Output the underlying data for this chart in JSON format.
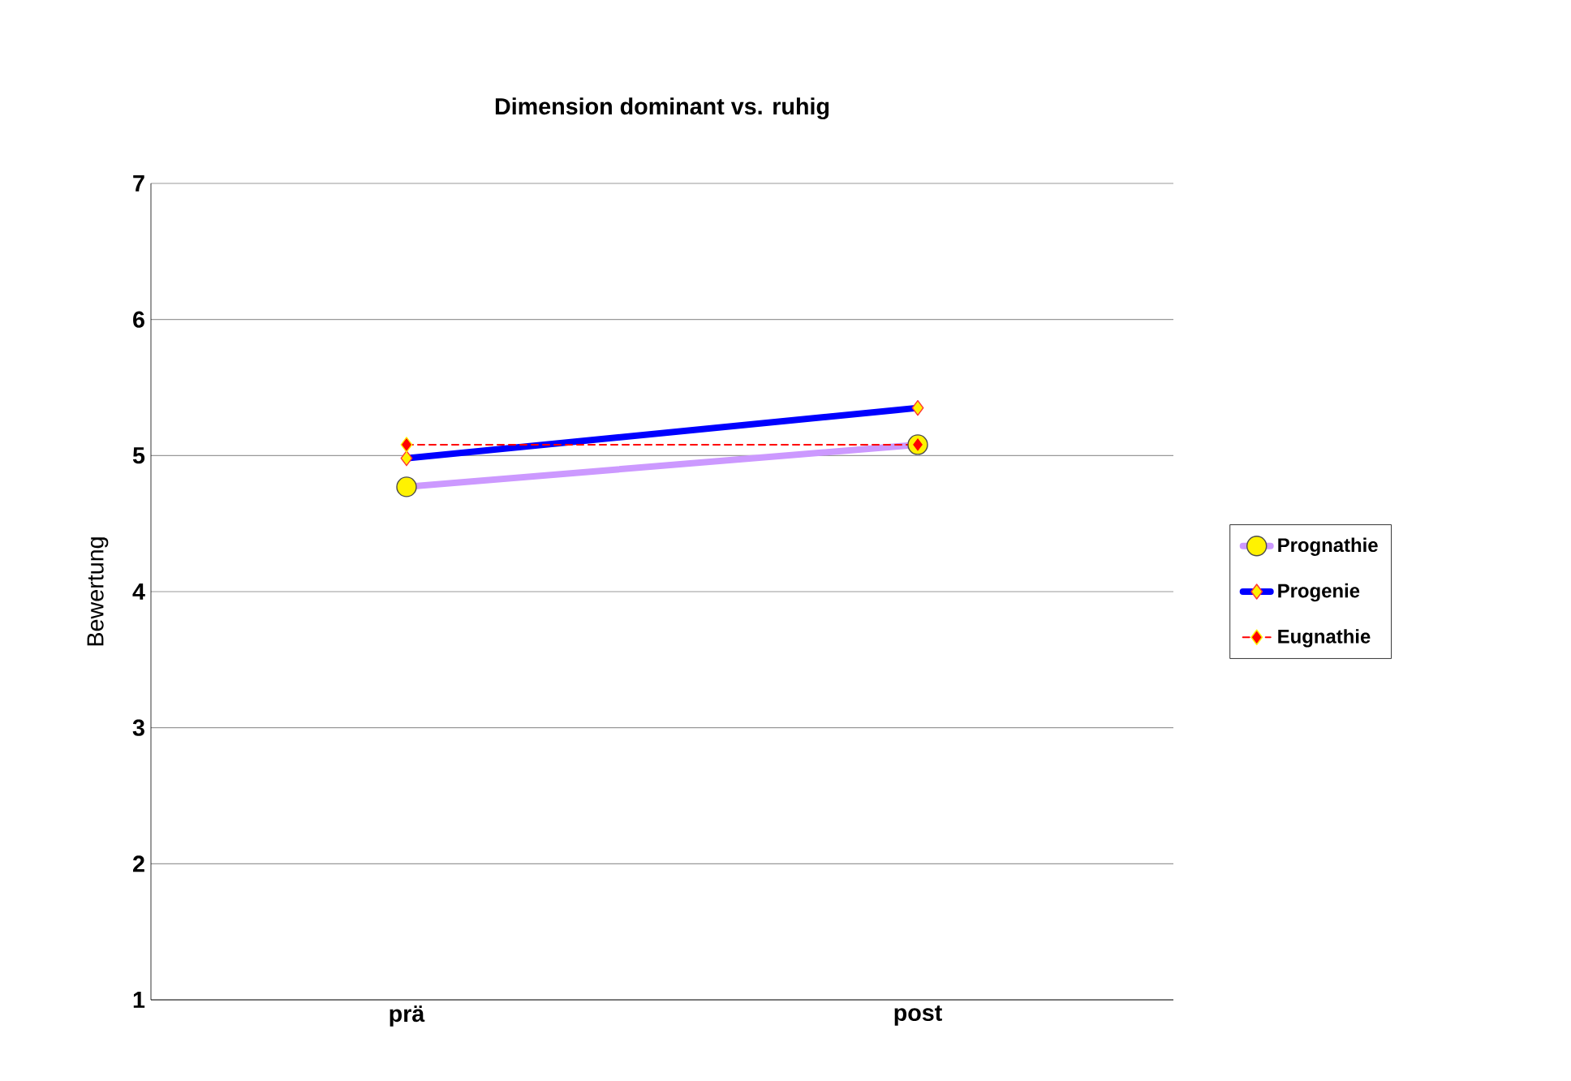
{
  "chart_data": {
    "type": "line",
    "title": "Dimension dominant vs. ruhig",
    "ylabel": "Bewertung",
    "categories": [
      "prä",
      "post"
    ],
    "ylim": [
      1,
      7
    ],
    "yticks": [
      1,
      2,
      3,
      4,
      5,
      6,
      7
    ],
    "grid": "y",
    "legend": "right",
    "series": [
      {
        "name": "Prognathie",
        "color": "#cc99ff",
        "values": [
          4.77,
          5.08
        ],
        "marker": "circle",
        "line_style": "solid"
      },
      {
        "name": "Progenie",
        "color": "#0000ff",
        "values": [
          4.98,
          5.35
        ],
        "marker": "diamond",
        "line_style": "solid"
      },
      {
        "name": "Eugnathie",
        "color": "#ff0000",
        "values": [
          5.08,
          5.08
        ],
        "marker": "diamond",
        "line_style": "dashed"
      }
    ]
  }
}
